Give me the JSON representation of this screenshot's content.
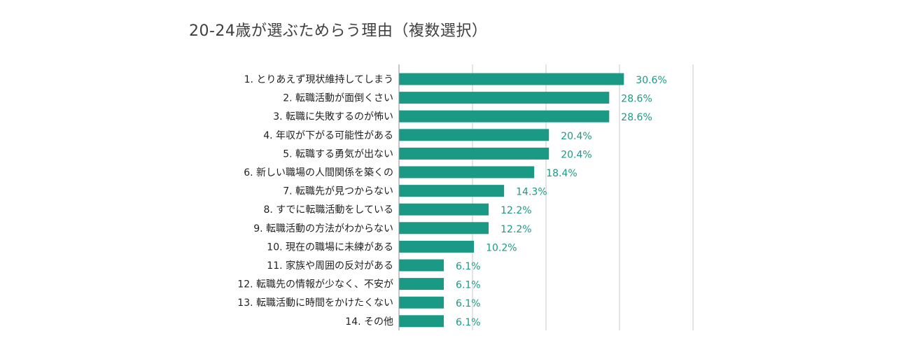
{
  "chart_data": {
    "type": "bar",
    "orientation": "horizontal",
    "title": "20-24歳が選ぶためらう理由（複数選択）",
    "xlabel": "",
    "ylabel": "",
    "xlim": [
      0,
      40
    ],
    "grid": true,
    "legend": "none",
    "categories": [
      "1. とりあえず現状維持してしまう",
      "2. 転職活動が面倒くさい",
      "3. 転職に失敗するのが怖い",
      "4. 年収が下がる可能性がある",
      "5. 転職する勇気が出ない",
      "6. 新しい職場の人間関係を築くの",
      "7. 転職先が見つからない",
      "8. すでに転職活動をしている",
      "9. 転職活動の方法がわからない",
      "10. 現在の職場に未練がある",
      "11. 家族や周囲の反対がある",
      "12. 転職先の情報が少なく、不安が",
      "13. 転職活動に時間をかけたくない",
      "14. その他"
    ],
    "values": [
      30.6,
      28.6,
      28.6,
      20.4,
      20.4,
      18.4,
      14.3,
      12.2,
      12.2,
      10.2,
      6.1,
      6.1,
      6.1,
      6.1
    ],
    "data_labels": [
      "30.6%",
      "28.6%",
      "28.6%",
      "20.4%",
      "20.4%",
      "18.4%",
      "14.3%",
      "12.2%",
      "12.2%",
      "10.2%",
      "6.1%",
      "6.1%",
      "6.1%",
      "6.1%"
    ],
    "colors": {
      "bar": "#1a9a85",
      "value_label": "#1a9a85",
      "category_label": "#222222",
      "grid": "#c8c8c8",
      "axis": "#8c8c8c",
      "title": "#404040"
    }
  }
}
